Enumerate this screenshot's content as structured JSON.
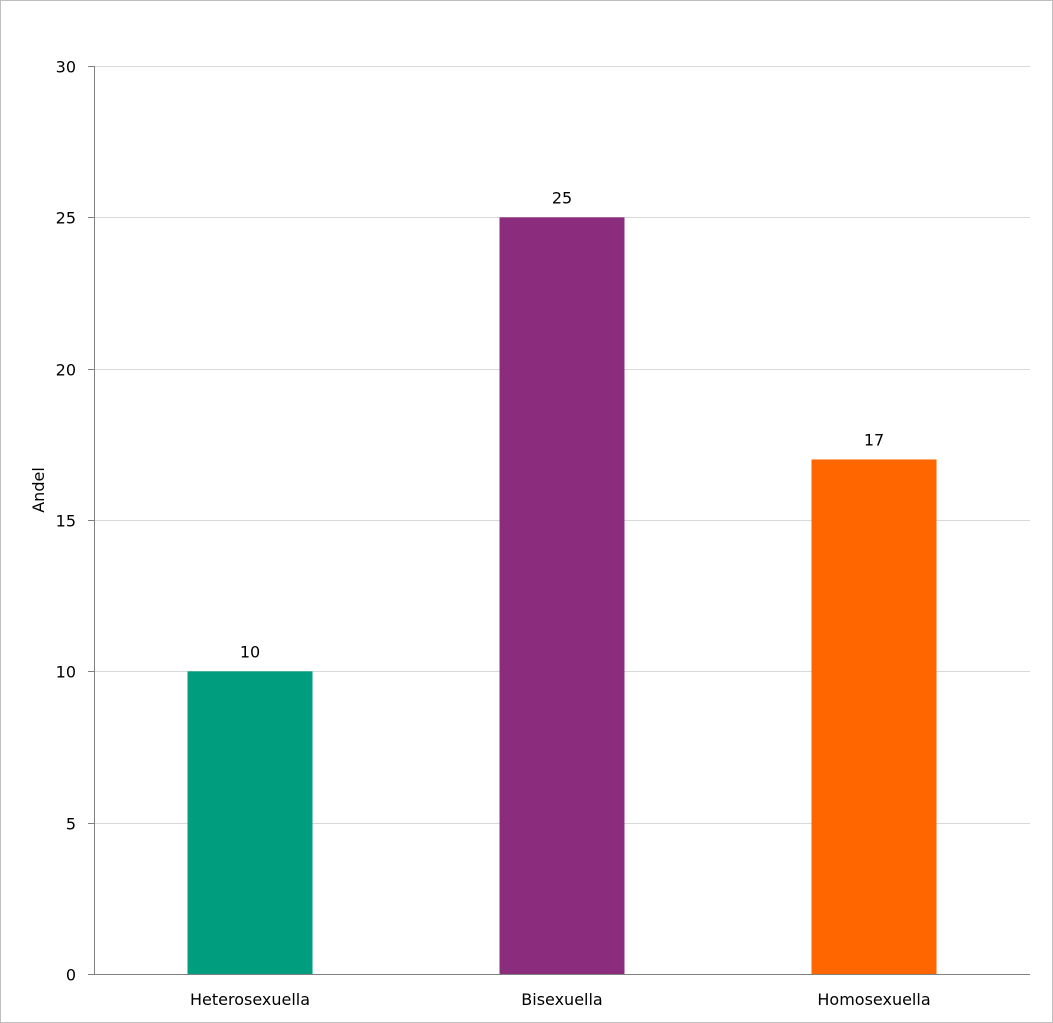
{
  "chart_data": {
    "type": "bar",
    "title": "",
    "xlabel": "",
    "ylabel": "Andel",
    "ylim": [
      0,
      30
    ],
    "yticks": [
      0,
      5,
      10,
      15,
      20,
      25,
      30
    ],
    "grid": true,
    "legend": "none",
    "categories": [
      "Heterosexuella",
      "Bisexuella",
      "Homosexuella"
    ],
    "values": [
      10,
      25,
      17
    ],
    "data_labels": [
      "10",
      "25",
      "17"
    ],
    "colors": [
      "#009e7e",
      "#8b2d7c",
      "#ff6600"
    ]
  }
}
